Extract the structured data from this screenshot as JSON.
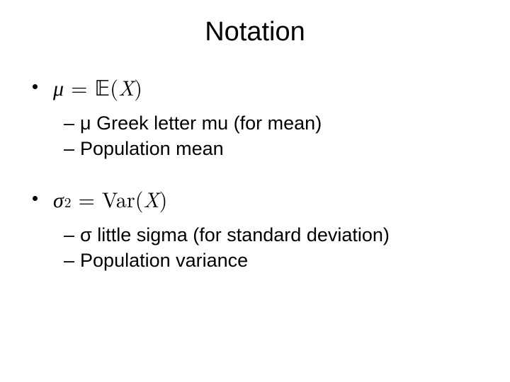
{
  "title": "Notation",
  "section1": {
    "formula": {
      "lhs": "μ",
      "eq": "=",
      "op": "𝔼",
      "open": "(",
      "var": "X",
      "close": ")"
    },
    "sub1": "μ  Greek letter mu (for mean)",
    "sub2": "Population mean"
  },
  "section2": {
    "formula": {
      "lhs_base": "σ",
      "lhs_sup": "2",
      "eq": "=",
      "op": "Var",
      "open": "(",
      "var": "X",
      "close": ")"
    },
    "sub1": "σ  little sigma (for standard deviation)",
    "sub2": "Population variance"
  },
  "dash": "–"
}
